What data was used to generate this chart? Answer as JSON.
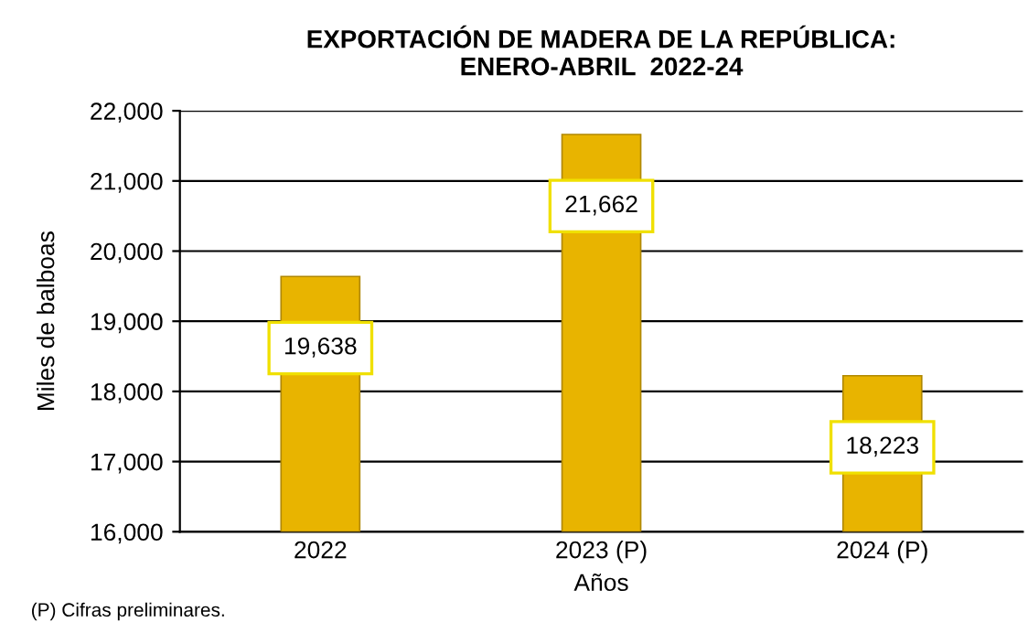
{
  "chart_data": {
    "type": "bar",
    "title": "EXPORTACIÓN DE MADERA DE LA REPÚBLICA:\nENERO-ABRIL  2022-24",
    "xlabel": "Años",
    "ylabel": "Miles de balboas",
    "categories": [
      "2022",
      "2023 (P)",
      "2024 (P)"
    ],
    "values": [
      19638,
      21662,
      18223
    ],
    "color": "#e8b400",
    "value_labels": [
      "19,638",
      "21,662",
      "18,223"
    ],
    "ylim": [
      16000,
      22000
    ],
    "yticks": [
      {
        "value": 16000,
        "label": "16,000"
      },
      {
        "value": 17000,
        "label": "17,000"
      },
      {
        "value": 18000,
        "label": "18,000"
      },
      {
        "value": 19000,
        "label": "19,000"
      },
      {
        "value": 20000,
        "label": "20,000"
      },
      {
        "value": 21000,
        "label": "21,000"
      },
      {
        "value": 22000,
        "label": "22,000"
      }
    ],
    "grid": "y",
    "annotations": [
      "(P) Cifras preliminares."
    ]
  }
}
